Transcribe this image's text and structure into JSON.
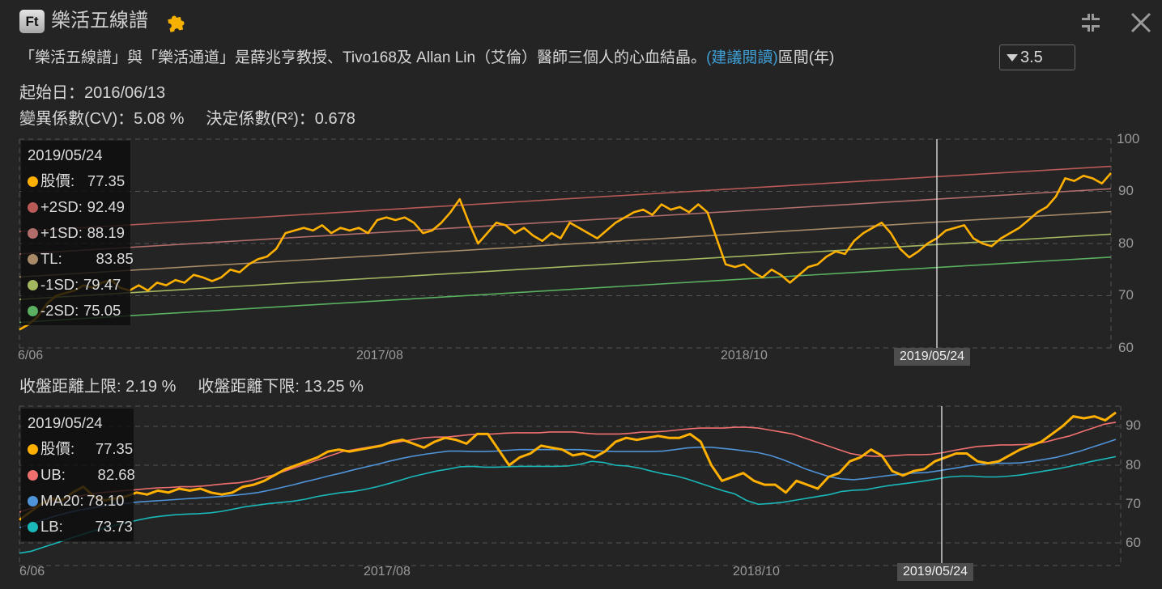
{
  "header": {
    "logo_text": "Ft",
    "title": "樂活五線譜",
    "icons": [
      "puzzle-icon",
      "shrink-icon",
      "close-icon"
    ]
  },
  "description": {
    "text": "「樂活五線譜」與「樂活通道」是薛兆亨教授、Tivo168及 Allan Lin（艾倫）醫師三個人的心血結晶。",
    "link": "(建議閱讀)",
    "period_label": "區間(年)",
    "period_value": "3.5"
  },
  "stats": {
    "start_date": "起始日：2016/06/13",
    "cv": "變異係數(CV)：5.08 %",
    "r2": "決定係數(R²)：0.678",
    "upper_dist": "收盤距離上限: 2.19 %",
    "lower_dist": "收盤距離下限: 13.25 %"
  },
  "colors": {
    "price": "#ffb000",
    "plus2sd": "#b85a55",
    "plus1sd": "#b06d6a",
    "tl": "#a88a68",
    "minus1sd": "#a4b860",
    "minus2sd": "#5ab060",
    "ub": "#f07070",
    "ma20": "#4f93d8",
    "lb": "#1ab8b8",
    "link": "#3fa0d8"
  },
  "chart_data": [
    {
      "type": "line",
      "title": "樂活五線譜",
      "xlabel": "",
      "ylabel": "",
      "ylim": [
        60,
        100
      ],
      "yticks": [
        60,
        70,
        80,
        90,
        100
      ],
      "xticks": [
        "6/06",
        "2017/08",
        "2018/10"
      ],
      "crosshair_date": "2019/05/24",
      "tooltip": {
        "date": "2019/05/24",
        "rows": [
          {
            "label": "股價:",
            "value": "77.35",
            "color": "#ffb000"
          },
          {
            "label": "+2SD:",
            "value": "92.49",
            "color": "#b85a55"
          },
          {
            "label": "+1SD:",
            "value": "88.19",
            "color": "#b06d6a"
          },
          {
            "label": "TL:",
            "value": "83.85",
            "color": "#a88a68"
          },
          {
            "label": "-1SD:",
            "value": "79.47",
            "color": "#a4b860"
          },
          {
            "label": "-2SD:",
            "value": "75.05",
            "color": "#5ab060"
          }
        ]
      },
      "lines": {
        "+2SD": {
          "start": 82.3,
          "end": 94.8
        },
        "+1SD": {
          "start": 78.0,
          "end": 90.5
        },
        "TL": {
          "start": 73.6,
          "end": 86.1
        },
        "-1SD": {
          "start": 69.3,
          "end": 81.8
        },
        "-2SD": {
          "start": 64.9,
          "end": 77.4
        }
      },
      "x_range": [
        "2016/06/13",
        "2019/12"
      ],
      "price_series": [
        63.5,
        64.5,
        66,
        68.5,
        70,
        70.5,
        71,
        72,
        71.5,
        72.5,
        73,
        71.5,
        71,
        72,
        71,
        72.5,
        72,
        73,
        72.5,
        74,
        73.5,
        72.8,
        73.5,
        75,
        74.5,
        76,
        77,
        77.5,
        79,
        82,
        82.5,
        83,
        82.5,
        83.5,
        82,
        83,
        82.5,
        83,
        82,
        84.5,
        85,
        84.5,
        85,
        84,
        82,
        82.5,
        84,
        86,
        88.5,
        84,
        80,
        82,
        84,
        83.5,
        82,
        83,
        81.5,
        80.5,
        82,
        81,
        84,
        83,
        82,
        81,
        82.5,
        84,
        85,
        86,
        86.5,
        85.5,
        87.5,
        86.5,
        87,
        86,
        87.5,
        86,
        81,
        76,
        75.5,
        76,
        74.5,
        73.5,
        75,
        74,
        72.5,
        74,
        75.5,
        76,
        77.5,
        78.5,
        78,
        80.5,
        82,
        83,
        84,
        82,
        79,
        77.35,
        78.5,
        80,
        81,
        82.5,
        83,
        83.5,
        81,
        80,
        79.5,
        81,
        82,
        83,
        84.5,
        86,
        87,
        89,
        92.5,
        92,
        93,
        92.5,
        91.5,
        93.5
      ]
    },
    {
      "type": "line",
      "title": "樂活通道",
      "xlabel": "",
      "ylabel": "",
      "ylim": [
        55,
        95
      ],
      "yticks": [
        60,
        70,
        80,
        90
      ],
      "xticks": [
        "6/06",
        "2017/08",
        "2018/10"
      ],
      "crosshair_date": "2019/05/24",
      "tooltip": {
        "date": "2019/05/24",
        "rows": [
          {
            "label": "股價:",
            "value": "77.35",
            "color": "#ffb000"
          },
          {
            "label": "UB:",
            "value": "82.68",
            "color": "#f07070"
          },
          {
            "label": "MA20:",
            "value": "78.10",
            "color": "#4f93d8"
          },
          {
            "label": "LB:",
            "value": "73.73",
            "color": "#1ab8b8"
          }
        ]
      },
      "series": [
        {
          "name": "股價",
          "values": [
            66,
            68,
            70,
            71.5,
            71,
            73,
            74.5,
            72,
            71,
            71.5,
            72,
            73,
            72.5,
            73.5,
            73,
            74,
            73.5,
            74,
            73,
            72.5,
            73,
            74.5,
            75,
            76,
            77.5,
            79,
            80,
            81,
            82,
            83.5,
            84,
            83.5,
            84,
            84.5,
            85,
            86,
            86.5,
            85.5,
            84.5,
            86,
            87,
            86.5,
            85.5,
            88,
            88,
            84,
            80,
            82,
            83,
            85,
            84.5,
            84,
            82.5,
            83,
            82,
            83.5,
            86,
            87,
            86.5,
            87,
            87.5,
            87,
            87,
            88,
            86,
            80,
            76,
            77,
            78,
            76,
            75,
            75,
            73,
            76,
            75,
            74,
            77,
            78,
            81,
            82,
            84,
            82.5,
            78.5,
            77.35,
            78.5,
            79,
            81,
            82,
            83,
            83,
            81,
            80.5,
            81,
            82.5,
            84,
            85,
            86,
            88,
            90,
            92.5,
            92,
            92.5,
            91.5,
            93.5
          ]
        },
        {
          "name": "UB",
          "values": [
            68,
            69,
            70,
            71,
            71.5,
            72,
            72.5,
            73,
            73.2,
            73.5,
            73.7,
            74,
            74.2,
            74.3,
            74.5,
            74.5,
            74.7,
            75,
            75.3,
            75.5,
            76,
            76.8,
            77.5,
            78.5,
            79.5,
            80.5,
            81.5,
            82.5,
            83.5,
            84,
            84.5,
            85,
            85.5,
            86,
            86.5,
            87,
            87.2,
            87.2,
            87.5,
            87.8,
            88,
            88,
            88.2,
            88.3,
            88.3,
            88.3,
            88.5,
            88.5,
            88.5,
            88.2,
            88,
            88,
            88,
            88.2,
            88.5,
            88.5,
            88.7,
            89,
            89.3,
            89.5,
            89.5,
            89.5,
            89.7,
            89.7,
            89.5,
            89,
            88.5,
            88,
            87,
            86,
            85,
            84,
            83,
            82.5,
            82.3,
            82.3,
            82.5,
            82.7,
            82.68,
            82.8,
            83.2,
            83.8,
            84.3,
            84.8,
            85,
            85.2,
            85.2,
            85.3,
            85.5,
            86,
            86.8,
            87.5,
            88.5,
            89.5,
            90.5,
            91
          ]
        },
        {
          "name": "MA20",
          "values": [
            64,
            65,
            66,
            67,
            67.8,
            68.5,
            69,
            69.5,
            70,
            70.3,
            70.6,
            70.8,
            71,
            71.2,
            71.4,
            71.6,
            71.8,
            72,
            72.3,
            72.6,
            73,
            73.6,
            74.3,
            75,
            75.8,
            76.5,
            77.3,
            78,
            78.8,
            79.5,
            80.2,
            81,
            81.7,
            82.3,
            82.8,
            83.2,
            83.6,
            83.6,
            83.5,
            83.5,
            83.6,
            83.8,
            84,
            84,
            84,
            84,
            84,
            84,
            83.8,
            83.6,
            83.5,
            83.5,
            83.5,
            83.5,
            83.6,
            84,
            84.4,
            84.6,
            84.6,
            84.3,
            84,
            83.6,
            83.2,
            82.5,
            81.5,
            80.3,
            79,
            78,
            77,
            76.5,
            76.3,
            76.6,
            77,
            77.4,
            77.7,
            78,
            78.1,
            78.5,
            79,
            79.5,
            80,
            80.3,
            80.5,
            80.5,
            80.6,
            81,
            81.5,
            82,
            82.8,
            83.6,
            84.6,
            85.6,
            86.6
          ]
        },
        {
          "name": "LB",
          "values": [
            57.5,
            58,
            59,
            60,
            61,
            62,
            63,
            63.8,
            64.6,
            65.3,
            66,
            66.6,
            67,
            67.3,
            67.5,
            67.6,
            67.8,
            68.2,
            68.8,
            69.4,
            69.8,
            70.2,
            70.5,
            70.8,
            71.3,
            72,
            72.5,
            73,
            73.3,
            73.8,
            74.5,
            75.3,
            76.2,
            77.1,
            77.8,
            78.5,
            79,
            79.6,
            79.7,
            79.5,
            79.5,
            79.6,
            79.7,
            79.7,
            79.7,
            79.7,
            79.8,
            80.2,
            81,
            80.7,
            80,
            79.8,
            79.3,
            78.5,
            77.8,
            77.3,
            76.5,
            75.5,
            74.5,
            73.5,
            72.7,
            71,
            70,
            70.2,
            70.5,
            71,
            71.5,
            72,
            72.5,
            73.3,
            73.6,
            73.73,
            74.3,
            74.8,
            75.2,
            75.6,
            76,
            76.5,
            77,
            77.2,
            77.2,
            77,
            77,
            77.2,
            77.5,
            78,
            78.5,
            79,
            79.6,
            80.3,
            81,
            81.6,
            82.2
          ]
        }
      ]
    }
  ],
  "tooltip_box_date": "2019/05/24"
}
